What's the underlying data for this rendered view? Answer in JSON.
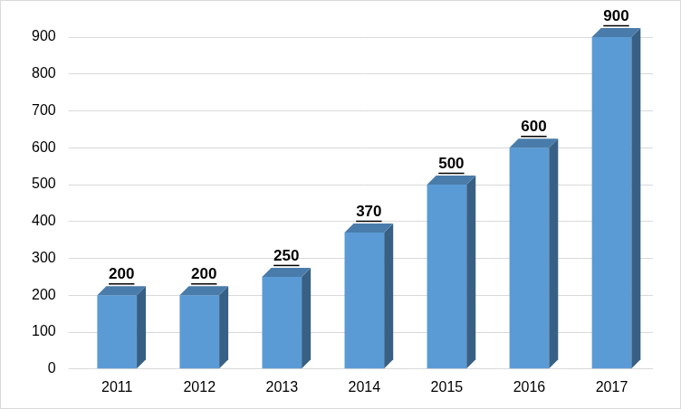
{
  "chart_data": {
    "type": "bar",
    "categories": [
      "2011",
      "2012",
      "2013",
      "2014",
      "2015",
      "2016",
      "2017"
    ],
    "values": [
      200,
      200,
      250,
      370,
      500,
      600,
      900
    ],
    "color": "#5b9bd5",
    "ylim": [
      0,
      900
    ],
    "yticks": [
      0,
      100,
      200,
      300,
      400,
      500,
      600,
      700,
      800,
      900
    ],
    "grid": true,
    "data_labels": true
  }
}
